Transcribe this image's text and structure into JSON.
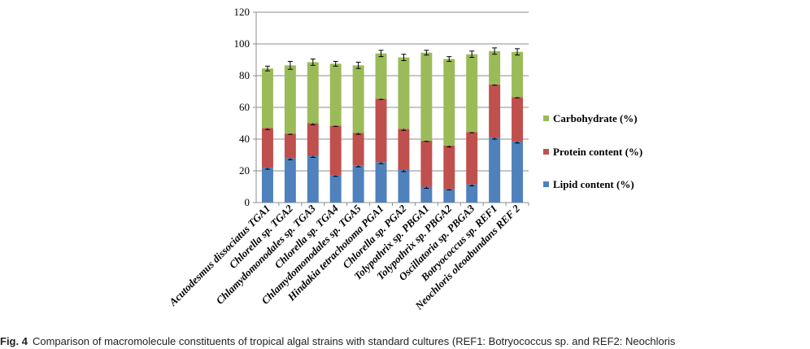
{
  "chart_data": {
    "type": "bar",
    "stacked": true,
    "categories": [
      "Acutodesmus dissociatus  TGA1",
      "Chlorella sp. TGA2",
      "Chlamydomonodales sp.  TGA3",
      "Chlorella sp.  TGA4",
      "Chlamydomonodales  sp.  TGA5",
      "Hindakia tetrachotoma PGA1",
      "Chlorella sp. PGA2",
      "Tolypothrix sp. PBGA1",
      "Tolypothrix sp.  PBGA2",
      "Oscillatoria sp. PBGA3",
      "Botryococcus sp. REF1",
      "Neochloris oleoabundans REF 2"
    ],
    "series": [
      {
        "name": "Lipid content (%)",
        "color": "#4f81bd",
        "values": [
          22,
          28,
          29.5,
          17,
          23.5,
          25.5,
          20.5,
          10,
          8.5,
          11.5,
          41,
          38.5
        ],
        "errors": [
          1,
          1,
          1,
          0.5,
          1,
          1,
          1,
          1,
          0.5,
          1,
          1,
          1
        ]
      },
      {
        "name": "Protein content (%)",
        "color": "#c0504d",
        "values": [
          25,
          15.5,
          20.5,
          31.5,
          20.5,
          40,
          26,
          29,
          27.5,
          33,
          33.5,
          28
        ],
        "errors": [
          1,
          0.5,
          1,
          0.5,
          1,
          0.5,
          1,
          0.5,
          1,
          0.5,
          0.5,
          0.5
        ]
      },
      {
        "name": "Carbohydrate (%)",
        "color": "#9bbb59",
        "values": [
          37.5,
          43,
          38.5,
          39,
          42.5,
          28.5,
          45,
          55.5,
          54.5,
          49,
          21,
          28.5
        ],
        "errors": [
          1.5,
          2.5,
          2,
          1.5,
          2,
          2,
          2,
          1.5,
          1.5,
          2,
          2,
          2
        ]
      }
    ],
    "ylim": [
      0,
      120
    ],
    "yticks": [
      "0",
      "20",
      "40",
      "60",
      "80",
      "100",
      "120"
    ],
    "ytick_values": [
      0,
      20,
      40,
      60,
      80,
      100,
      120
    ],
    "grid": true,
    "legend_position": "right",
    "title": "",
    "xlabel": "",
    "ylabel": ""
  },
  "caption": {
    "label": "Fig. 4",
    "text": "Comparison of macromolecule constituents of tropical algal strains with standard cultures (REF1: Botryococcus sp. and REF2: Neochloris"
  }
}
